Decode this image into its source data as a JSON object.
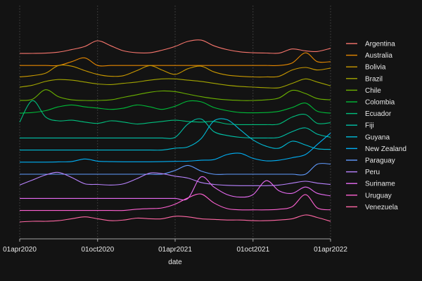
{
  "chart_data": {
    "type": "line",
    "subtype": "ridgeline",
    "title": "",
    "xlabel": "date",
    "ylabel": "",
    "x_ticks": [
      "01apr2020",
      "01oct2020",
      "01apr2021",
      "01oct2021",
      "01apr2022"
    ],
    "x_range": [
      "2020-04-01",
      "2022-04-01"
    ],
    "grid": "vertical dotted",
    "legend_position": "right",
    "background": "#131313",
    "text_color": "#e8e8e8",
    "x": [
      "2020-04-01",
      "2020-05-01",
      "2020-06-01",
      "2020-07-01",
      "2020-08-01",
      "2020-09-01",
      "2020-10-01",
      "2020-11-01",
      "2020-12-01",
      "2021-01-01",
      "2021-02-01",
      "2021-03-01",
      "2021-04-01",
      "2021-05-01",
      "2021-06-01",
      "2021-07-01",
      "2021-08-01",
      "2021-09-01",
      "2021-10-01",
      "2021-11-01",
      "2021-12-01",
      "2022-01-01",
      "2022-02-01",
      "2022-03-01",
      "2022-04-01"
    ],
    "series": [
      {
        "name": "Argentina",
        "color": "#F8766D",
        "values": [
          0,
          0,
          0.02,
          0.1,
          0.3,
          0.55,
          1,
          0.6,
          0.2,
          0.05,
          0.05,
          0.25,
          0.55,
          0.95,
          1.05,
          0.6,
          0.3,
          0.12,
          0.05,
          0.03,
          0.02,
          0.35,
          0.2,
          0.15,
          0.4
        ]
      },
      {
        "name": "Australia",
        "color": "#E58700",
        "values": [
          0,
          0,
          0,
          0,
          0.3,
          0.6,
          0,
          0,
          0,
          0,
          0,
          0,
          0,
          0,
          0,
          0,
          0,
          0,
          0,
          0,
          0,
          0.2,
          1,
          0.3,
          0.3
        ]
      },
      {
        "name": "Bolivia",
        "color": "#C99800",
        "values": [
          0.05,
          0.15,
          0.35,
          0.95,
          0.9,
          0.55,
          0.25,
          0.1,
          0.15,
          0.55,
          0.95,
          0.6,
          0.25,
          0.7,
          0.9,
          0.45,
          0.2,
          0.1,
          0.05,
          0.05,
          0.1,
          0.6,
          0.8,
          0.6,
          0.75
        ]
      },
      {
        "name": "Brazil",
        "color": "#A3A500",
        "values": [
          0.2,
          0.35,
          0.65,
          0.8,
          0.75,
          0.6,
          0.45,
          0.4,
          0.5,
          0.6,
          0.75,
          0.85,
          0.85,
          0.75,
          0.65,
          0.5,
          0.35,
          0.25,
          0.2,
          0.15,
          0.15,
          0.5,
          0.85,
          0.6,
          0.3
        ]
      },
      {
        "name": "Chile",
        "color": "#6BB100",
        "values": [
          0.1,
          0.2,
          0.95,
          0.4,
          0.15,
          0.1,
          0.1,
          0.15,
          0.35,
          0.55,
          0.75,
          0.85,
          0.8,
          0.6,
          0.4,
          0.25,
          0.15,
          0.1,
          0.1,
          0.15,
          0.3,
          0.9,
          0.65,
          0.25,
          0.15
        ]
      },
      {
        "name": "Colombia",
        "color": "#00BA38",
        "values": [
          0.05,
          0.1,
          0.25,
          0.55,
          0.7,
          0.55,
          0.45,
          0.35,
          0.45,
          0.7,
          0.55,
          0.35,
          0.6,
          1,
          0.95,
          0.5,
          0.25,
          0.1,
          0.08,
          0.1,
          0.2,
          0.5,
          0.85,
          0.2,
          0.05
        ]
      },
      {
        "name": "Ecuador",
        "color": "#00BF7D",
        "values": [
          0.3,
          2.0,
          0.7,
          0.4,
          0.45,
          0.3,
          0.2,
          0.4,
          0.3,
          0.15,
          0.25,
          0.35,
          0.45,
          0.35,
          0.3,
          0.35,
          0.15,
          0.1,
          0.1,
          0.1,
          0.15,
          0.7,
          0.9,
          0.2,
          0.25
        ]
      },
      {
        "name": "Fiji",
        "color": "#00C1A7",
        "values": [
          0,
          0,
          0,
          0,
          0,
          0,
          0,
          0,
          0,
          0,
          0,
          0,
          0.05,
          1.1,
          1.5,
          0.5,
          0.2,
          0.05,
          0,
          0,
          0.05,
          0.5,
          0.8,
          0.3,
          0.05
        ]
      },
      {
        "name": "Guyana",
        "color": "#00BCD8",
        "values": [
          0,
          0,
          0,
          0,
          0,
          0,
          0,
          0,
          0,
          0,
          0,
          0,
          0.15,
          0.25,
          0.9,
          2.3,
          2.4,
          1.6,
          0.8,
          0.3,
          0.15,
          0.7,
          0.4,
          0.1,
          0.05
        ]
      },
      {
        "name": "New Zealand",
        "color": "#00B0F6",
        "values": [
          0,
          0,
          0,
          0.02,
          0.05,
          0.25,
          0.08,
          0.04,
          0.03,
          0.03,
          0.03,
          0.04,
          0.06,
          0.08,
          0.15,
          0.2,
          0.6,
          0.7,
          0.3,
          0.1,
          0.15,
          0.35,
          0.6,
          1.4,
          2.3
        ]
      },
      {
        "name": "Paraguay",
        "color": "#619CFF",
        "values": [
          0,
          0,
          0,
          0,
          0,
          0,
          0,
          0,
          0,
          0,
          0,
          0,
          0.3,
          0.7,
          0.25,
          0,
          0,
          0,
          0,
          0,
          0,
          0,
          0,
          0.8,
          0.8
        ]
      },
      {
        "name": "Peru",
        "color": "#B983FF",
        "values": [
          0.1,
          0.5,
          0.9,
          1.1,
          0.7,
          0.2,
          0.15,
          0.1,
          0.2,
          0.6,
          1.05,
          1.0,
          0.8,
          0.65,
          0.3,
          0.15,
          0.08,
          0.05,
          0.05,
          0.05,
          0.1,
          0.25,
          0.4,
          0.25,
          0.15
        ]
      },
      {
        "name": "Suriname",
        "color": "#E76BF3",
        "values": [
          0,
          0,
          0,
          0,
          0,
          0,
          0,
          0,
          0,
          0,
          0,
          0,
          0,
          0,
          1.7,
          0.9,
          0.3,
          0.1,
          0.3,
          1.4,
          0.6,
          0.4,
          0.9,
          0.4,
          0.2
        ]
      },
      {
        "name": "Uruguay",
        "color": "#FD61D1",
        "values": [
          0,
          0,
          0,
          0,
          0,
          0,
          0,
          0,
          0,
          0.1,
          0.15,
          0.2,
          0.5,
          1.0,
          1.3,
          0.6,
          0.15,
          0.05,
          0.05,
          0.05,
          0.1,
          0.3,
          1.25,
          0.2,
          0.05
        ]
      },
      {
        "name": "Venezuela",
        "color": "#FF67A4",
        "values": [
          0.05,
          0.1,
          0.1,
          0.15,
          0.3,
          0.45,
          0.3,
          0.15,
          0.2,
          0.35,
          0.3,
          0.3,
          0.5,
          0.45,
          0.3,
          0.25,
          0.2,
          0.2,
          0.15,
          0.15,
          0.2,
          0.3,
          0.6,
          0.4,
          0.1
        ]
      }
    ]
  }
}
